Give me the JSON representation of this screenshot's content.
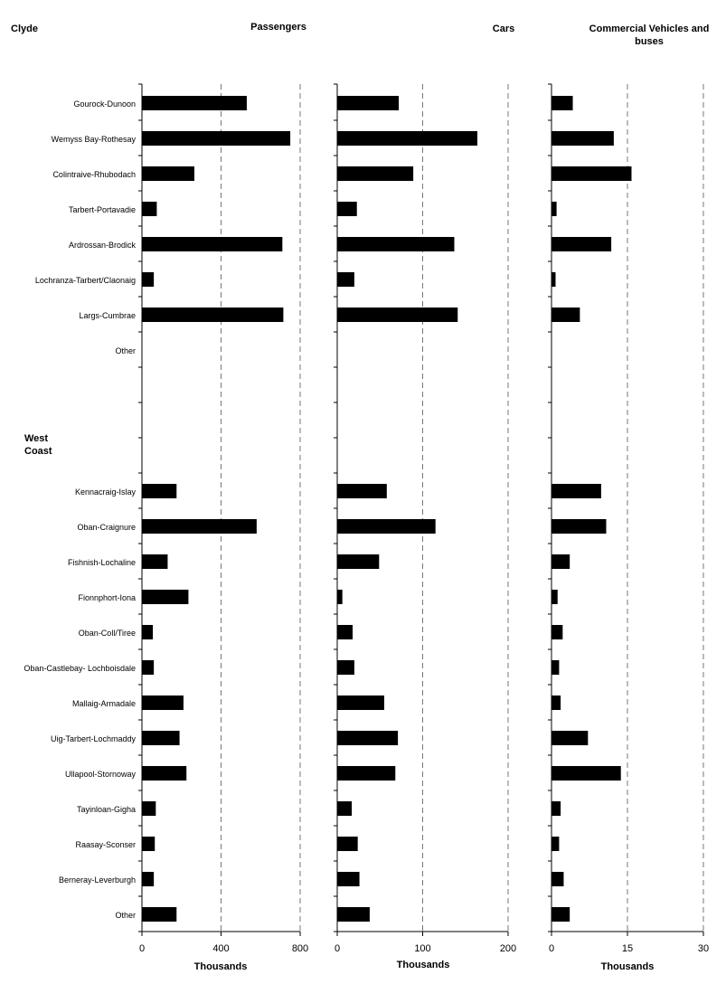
{
  "chart_data": {
    "type": "bar",
    "orientation": "horizontal",
    "group_labels": [
      "Clyde",
      "West\nCoast"
    ],
    "categories": [
      "Gourock-Dunoon",
      "Wemyss Bay-Rothesay",
      "Colintraive-Rhubodach",
      "Tarbert-Portavadie",
      "Ardrossan-Brodick",
      "Lochranza-Tarbert/Claonaig",
      "Largs-Cumbrae",
      "Other",
      "Kennacraig-Islay",
      "Oban-Craignure",
      "Fishnish-Lochaline",
      "Fionnphort-Iona",
      "Oban-Coll/Tiree",
      "Oban-Castlebay- Lochboisdale",
      "Mallaig-Armadale",
      "Uig-Tarbert-Lochmaddy",
      "Ullapool-Stornoway",
      "Tayinloan-Gigha",
      "Raasay-Sconser",
      "Berneray-Leverburgh",
      "Other"
    ],
    "panels": [
      {
        "title": "Passengers",
        "xlabel": "Thousands",
        "xlim": [
          0,
          800
        ],
        "xticks": [
          "0",
          "400",
          "800"
        ],
        "grid": "dashed",
        "values": [
          530,
          750,
          265,
          75,
          710,
          60,
          715,
          null,
          175,
          580,
          130,
          235,
          55,
          60,
          210,
          190,
          225,
          70,
          65,
          60,
          175
        ]
      },
      {
        "title": "Cars",
        "xlabel": "Thousands",
        "xlim": [
          0,
          200
        ],
        "xticks": [
          "0",
          "100",
          "200"
        ],
        "grid": "dashed",
        "values": [
          72,
          164,
          89,
          23,
          137,
          20,
          141,
          null,
          58,
          115,
          49,
          6,
          18,
          20,
          55,
          71,
          68,
          17,
          24,
          26,
          38
        ]
      },
      {
        "title": "Commercial Vehicles and buses",
        "xlabel": "Thousands",
        "xlim": [
          0,
          30
        ],
        "xticks": [
          "0",
          "15",
          "30"
        ],
        "grid": "dashed",
        "values": [
          4.2,
          12.3,
          15.8,
          1.0,
          11.8,
          0.8,
          5.6,
          null,
          9.8,
          10.8,
          3.6,
          1.2,
          2.2,
          1.5,
          1.8,
          7.2,
          13.7,
          1.8,
          1.5,
          2.4,
          3.6
        ]
      }
    ]
  }
}
